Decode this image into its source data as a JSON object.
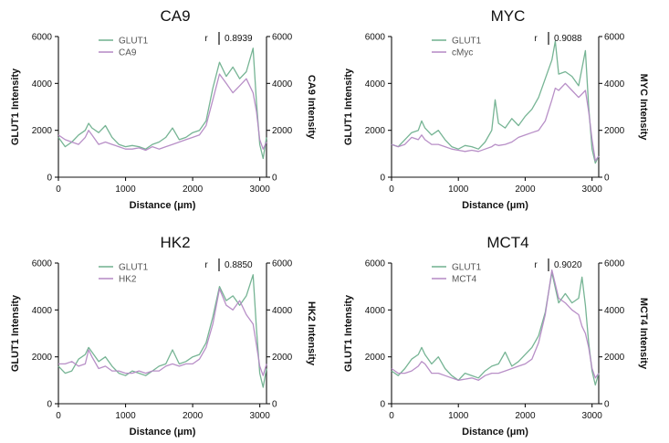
{
  "chart_data": [
    {
      "type": "line",
      "title": "CA9",
      "xlabel": "Distance (μm)",
      "ylabel": "GLUT1 Intensity",
      "y2label": "CA9 Intensity",
      "xlim": [
        0,
        3100
      ],
      "ylim": [
        0,
        6000
      ],
      "y2lim": [
        0,
        6000
      ],
      "xticks": [
        0,
        1000,
        2000,
        3000
      ],
      "yticks": [
        0,
        2000,
        4000,
        6000
      ],
      "y2ticks": [
        0,
        2000,
        4000,
        6000
      ],
      "r_label": "r",
      "r_value": "0.8939",
      "legend_position": "top-center",
      "series": [
        {
          "name": "GLUT1",
          "axis": "left",
          "color": "#6fb08e",
          "x": [
            0,
            100,
            200,
            300,
            400,
            450,
            500,
            600,
            700,
            800,
            900,
            1000,
            1100,
            1200,
            1300,
            1400,
            1500,
            1600,
            1700,
            1800,
            1900,
            2000,
            2100,
            2200,
            2300,
            2400,
            2500,
            2600,
            2700,
            2800,
            2900,
            2950,
            3000,
            3050,
            3100
          ],
          "y": [
            1700,
            1300,
            1500,
            1800,
            2000,
            2300,
            2100,
            1900,
            2200,
            1700,
            1400,
            1300,
            1350,
            1300,
            1200,
            1400,
            1500,
            1700,
            2100,
            1600,
            1700,
            1900,
            2000,
            2400,
            3800,
            4900,
            4300,
            4700,
            4200,
            4500,
            5500,
            3200,
            1400,
            800,
            1700
          ]
        },
        {
          "name": "CA9",
          "axis": "right",
          "color": "#b489c4",
          "x": [
            0,
            100,
            200,
            300,
            400,
            450,
            500,
            600,
            700,
            800,
            900,
            1000,
            1100,
            1200,
            1300,
            1400,
            1500,
            1600,
            1700,
            1800,
            1900,
            2000,
            2100,
            2200,
            2300,
            2400,
            2500,
            2600,
            2700,
            2800,
            2900,
            2950,
            3000,
            3050,
            3100
          ],
          "y": [
            1800,
            1600,
            1500,
            1400,
            1700,
            2000,
            1800,
            1400,
            1500,
            1400,
            1300,
            1200,
            1200,
            1250,
            1150,
            1300,
            1200,
            1300,
            1400,
            1500,
            1600,
            1700,
            1800,
            2200,
            3300,
            4400,
            4000,
            3600,
            3900,
            4200,
            3600,
            2800,
            1600,
            1200,
            1500
          ]
        }
      ]
    },
    {
      "type": "line",
      "title": "MYC",
      "xlabel": "Distance (μm)",
      "ylabel": "GLUT1 Intensity",
      "y2label": "MYC Intensity",
      "xlim": [
        0,
        3100
      ],
      "ylim": [
        0,
        6000
      ],
      "y2lim": [
        0,
        6000
      ],
      "xticks": [
        0,
        1000,
        2000,
        3000
      ],
      "yticks": [
        0,
        2000,
        4000,
        6000
      ],
      "y2ticks": [
        0,
        2000,
        4000,
        6000
      ],
      "r_label": "r",
      "r_value": "0.9088",
      "legend_position": "top-center",
      "series": [
        {
          "name": "GLUT1",
          "axis": "left",
          "color": "#6fb08e",
          "x": [
            0,
            100,
            200,
            300,
            400,
            450,
            500,
            600,
            700,
            800,
            900,
            1000,
            1100,
            1200,
            1300,
            1400,
            1500,
            1550,
            1600,
            1700,
            1800,
            1900,
            2000,
            2100,
            2200,
            2300,
            2400,
            2450,
            2500,
            2600,
            2700,
            2800,
            2900,
            2950,
            3000,
            3050,
            3100
          ],
          "y": [
            1400,
            1300,
            1600,
            1900,
            2000,
            2400,
            2100,
            1800,
            2000,
            1600,
            1300,
            1200,
            1350,
            1300,
            1200,
            1500,
            2000,
            3300,
            2300,
            2100,
            2500,
            2200,
            2600,
            2900,
            3400,
            4200,
            5000,
            5800,
            4400,
            4500,
            4300,
            3900,
            5400,
            3000,
            1200,
            600,
            900
          ]
        },
        {
          "name": "cMyc",
          "axis": "right",
          "color": "#b489c4",
          "x": [
            0,
            100,
            200,
            300,
            400,
            450,
            500,
            600,
            700,
            800,
            900,
            1000,
            1100,
            1200,
            1300,
            1400,
            1500,
            1550,
            1600,
            1700,
            1800,
            1900,
            2000,
            2100,
            2200,
            2300,
            2400,
            2450,
            2500,
            2600,
            2700,
            2800,
            2900,
            2950,
            3000,
            3050,
            3100
          ],
          "y": [
            1400,
            1300,
            1400,
            1700,
            1600,
            1800,
            1600,
            1400,
            1400,
            1300,
            1200,
            1150,
            1100,
            1150,
            1100,
            1200,
            1300,
            1400,
            1350,
            1400,
            1500,
            1700,
            1800,
            1900,
            2000,
            2400,
            3300,
            3800,
            3700,
            4000,
            3700,
            3400,
            3700,
            2800,
            1600,
            700,
            900
          ]
        }
      ]
    },
    {
      "type": "line",
      "title": "HK2",
      "xlabel": "Distance (μm)",
      "ylabel": "GLUT1 Intensity",
      "y2label": "HK2 Intensity",
      "xlim": [
        0,
        3100
      ],
      "ylim": [
        0,
        6000
      ],
      "y2lim": [
        0,
        6000
      ],
      "xticks": [
        0,
        1000,
        2000,
        3000
      ],
      "yticks": [
        0,
        2000,
        4000,
        6000
      ],
      "y2ticks": [
        0,
        2000,
        4000,
        6000
      ],
      "r_label": "r",
      "r_value": "0.8850",
      "legend_position": "top-center",
      "series": [
        {
          "name": "GLUT1",
          "axis": "left",
          "color": "#6fb08e",
          "x": [
            0,
            100,
            200,
            300,
            400,
            450,
            500,
            600,
            700,
            800,
            900,
            1000,
            1100,
            1200,
            1300,
            1400,
            1500,
            1600,
            1700,
            1800,
            1900,
            2000,
            2100,
            2200,
            2300,
            2400,
            2500,
            2600,
            2700,
            2800,
            2900,
            2950,
            3000,
            3050,
            3100
          ],
          "y": [
            1600,
            1300,
            1400,
            1900,
            2100,
            2400,
            2200,
            1800,
            2000,
            1600,
            1300,
            1200,
            1400,
            1300,
            1200,
            1400,
            1600,
            1700,
            2300,
            1700,
            1800,
            2000,
            2100,
            2600,
            3700,
            5000,
            4400,
            4600,
            4200,
            4600,
            5500,
            3200,
            1300,
            700,
            1500
          ]
        },
        {
          "name": "HK2",
          "axis": "right",
          "color": "#b489c4",
          "x": [
            0,
            100,
            200,
            300,
            400,
            450,
            500,
            600,
            700,
            800,
            900,
            1000,
            1100,
            1200,
            1300,
            1400,
            1500,
            1600,
            1700,
            1800,
            1900,
            2000,
            2100,
            2200,
            2300,
            2400,
            2500,
            2600,
            2700,
            2800,
            2900,
            2950,
            3000,
            3050,
            3100
          ],
          "y": [
            1700,
            1700,
            1800,
            1600,
            1700,
            2300,
            2000,
            1500,
            1600,
            1400,
            1400,
            1300,
            1300,
            1400,
            1300,
            1400,
            1400,
            1600,
            1700,
            1600,
            1700,
            1700,
            1900,
            2400,
            3400,
            4900,
            4200,
            4000,
            4400,
            3800,
            3400,
            2500,
            1600,
            1200,
            1700
          ]
        }
      ]
    },
    {
      "type": "line",
      "title": "MCT4",
      "xlabel": "Distance (μm)",
      "ylabel": "GLUT1 Intensity",
      "y2label": "MCT4 Intensity",
      "xlim": [
        0,
        3100
      ],
      "ylim": [
        0,
        6000
      ],
      "y2lim": [
        0,
        6000
      ],
      "xticks": [
        0,
        1000,
        2000,
        3000
      ],
      "yticks": [
        0,
        2000,
        4000,
        6000
      ],
      "y2ticks": [
        0,
        2000,
        4000,
        6000
      ],
      "r_label": "r",
      "r_value": "0.9020",
      "legend_position": "top-center",
      "series": [
        {
          "name": "GLUT1",
          "axis": "left",
          "color": "#6fb08e",
          "x": [
            0,
            100,
            200,
            300,
            400,
            450,
            500,
            600,
            700,
            800,
            900,
            1000,
            1100,
            1200,
            1300,
            1400,
            1500,
            1600,
            1700,
            1800,
            1900,
            2000,
            2100,
            2200,
            2300,
            2400,
            2500,
            2600,
            2700,
            2800,
            2850,
            2900,
            2950,
            3000,
            3050,
            3100
          ],
          "y": [
            1400,
            1200,
            1500,
            1900,
            2100,
            2400,
            2100,
            1700,
            2000,
            1500,
            1200,
            1000,
            1300,
            1200,
            1100,
            1400,
            1600,
            1700,
            2200,
            1600,
            1800,
            2100,
            2400,
            2900,
            3900,
            5600,
            4300,
            4700,
            4300,
            4500,
            5400,
            4200,
            2600,
            1400,
            800,
            1300
          ]
        },
        {
          "name": "MCT4",
          "axis": "right",
          "color": "#b489c4",
          "x": [
            0,
            100,
            200,
            300,
            400,
            450,
            500,
            600,
            700,
            800,
            900,
            1000,
            1100,
            1200,
            1300,
            1400,
            1500,
            1600,
            1700,
            1800,
            1900,
            2000,
            2100,
            2200,
            2300,
            2400,
            2500,
            2600,
            2700,
            2800,
            2850,
            2900,
            2950,
            3000,
            3050,
            3100
          ],
          "y": [
            1500,
            1300,
            1300,
            1400,
            1600,
            1800,
            1700,
            1300,
            1300,
            1200,
            1100,
            1000,
            1050,
            1100,
            1000,
            1200,
            1300,
            1300,
            1400,
            1500,
            1600,
            1700,
            1900,
            2600,
            3800,
            5700,
            4500,
            4300,
            4000,
            3800,
            3300,
            3000,
            2400,
            1500,
            1100,
            1300
          ]
        }
      ]
    }
  ]
}
